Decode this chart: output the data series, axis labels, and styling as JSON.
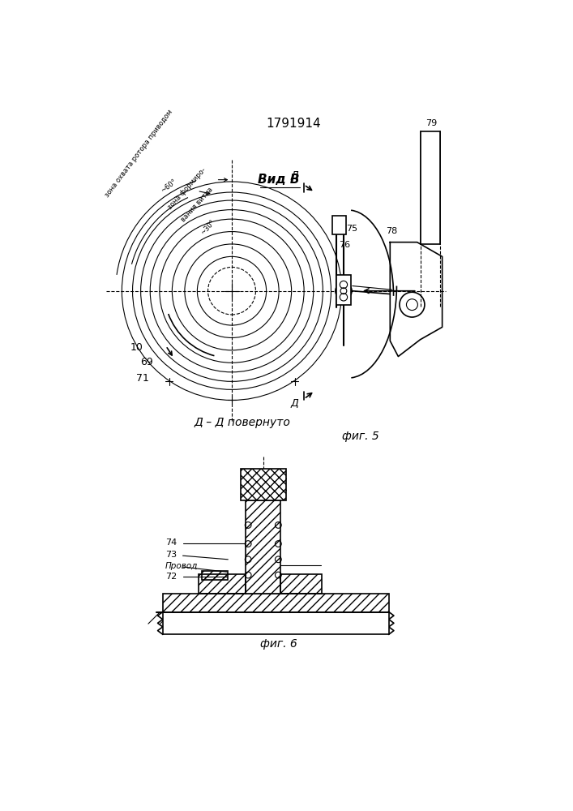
{
  "patent_number": "1791914",
  "fig5_label": "фиг. 5",
  "fig6_label": "фиг. 6",
  "vid_b_label": "Вид В",
  "section_label": "Д – Д повернуто",
  "d_label": "Д",
  "bg_color": "#ffffff",
  "line_color": "#000000"
}
